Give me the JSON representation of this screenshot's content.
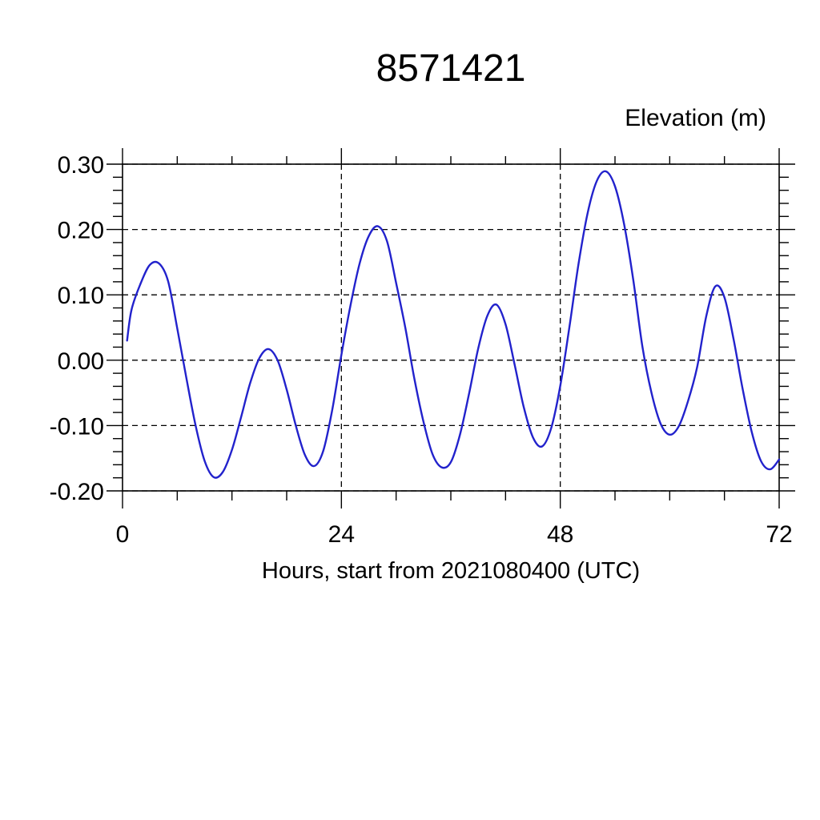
{
  "title": "8571421",
  "y_axis_label": "Elevation (m)",
  "x_axis_label": "Hours, start from 2021080400 (UTC)",
  "colors": {
    "line": "#2222cc",
    "axis": "#000000",
    "grid": "#000000",
    "text": "#000000",
    "background": "#ffffff"
  },
  "chart_data": {
    "type": "line",
    "title": "8571421",
    "xlabel": "Hours, start from 2021080400 (UTC)",
    "ylabel": "Elevation (m)",
    "xlim": [
      0,
      72
    ],
    "ylim": [
      -0.2,
      0.3
    ],
    "xticks": [
      0,
      24,
      48,
      72
    ],
    "xtick_labels": [
      "0",
      "24",
      "48",
      "72"
    ],
    "yticks": [
      0.3,
      0.2,
      0.1,
      0.0,
      -0.1,
      -0.2
    ],
    "ytick_labels": [
      "0.30",
      "0.20",
      "0.10",
      "0.00",
      "-0.10",
      "-0.20"
    ],
    "x_minor_step": 6,
    "y_minor_step": 0.02,
    "grid": "dashed lines at all major ticks, ticks outward on all four sides",
    "legend": "none",
    "series": [
      {
        "name": "elevation",
        "color": "#2222cc",
        "x": [
          0.5,
          1,
          2,
          3,
          4,
          5,
          6,
          7,
          8,
          9,
          10,
          11,
          12,
          13,
          14,
          15,
          16,
          17,
          18,
          19,
          20,
          21,
          22,
          23,
          24,
          25,
          26,
          27,
          28,
          29,
          30,
          31,
          32,
          33,
          34,
          35,
          36,
          37,
          38,
          39,
          40,
          41,
          42,
          43,
          44,
          45,
          46,
          47,
          48,
          49,
          50,
          51,
          52,
          53,
          54,
          55,
          56,
          57,
          58,
          59,
          60,
          61,
          62,
          63,
          64,
          65,
          66,
          67,
          68,
          69,
          70,
          71,
          72
        ],
        "y": [
          0.03,
          0.078,
          0.118,
          0.146,
          0.148,
          0.121,
          0.049,
          -0.027,
          -0.099,
          -0.154,
          -0.179,
          -0.171,
          -0.137,
          -0.087,
          -0.035,
          0.003,
          0.017,
          0.0,
          -0.045,
          -0.1,
          -0.145,
          -0.162,
          -0.139,
          -0.076,
          0.008,
          0.084,
          0.148,
          0.19,
          0.205,
          0.182,
          0.118,
          0.05,
          -0.028,
          -0.094,
          -0.144,
          -0.164,
          -0.156,
          -0.114,
          -0.051,
          0.018,
          0.068,
          0.085,
          0.055,
          -0.007,
          -0.072,
          -0.118,
          -0.132,
          -0.104,
          -0.039,
          0.051,
          0.147,
          0.225,
          0.274,
          0.289,
          0.266,
          0.208,
          0.123,
          0.021,
          -0.05,
          -0.097,
          -0.114,
          -0.101,
          -0.063,
          -0.011,
          0.067,
          0.113,
          0.096,
          0.032,
          -0.044,
          -0.11,
          -0.154,
          -0.167,
          -0.152
        ]
      }
    ]
  }
}
